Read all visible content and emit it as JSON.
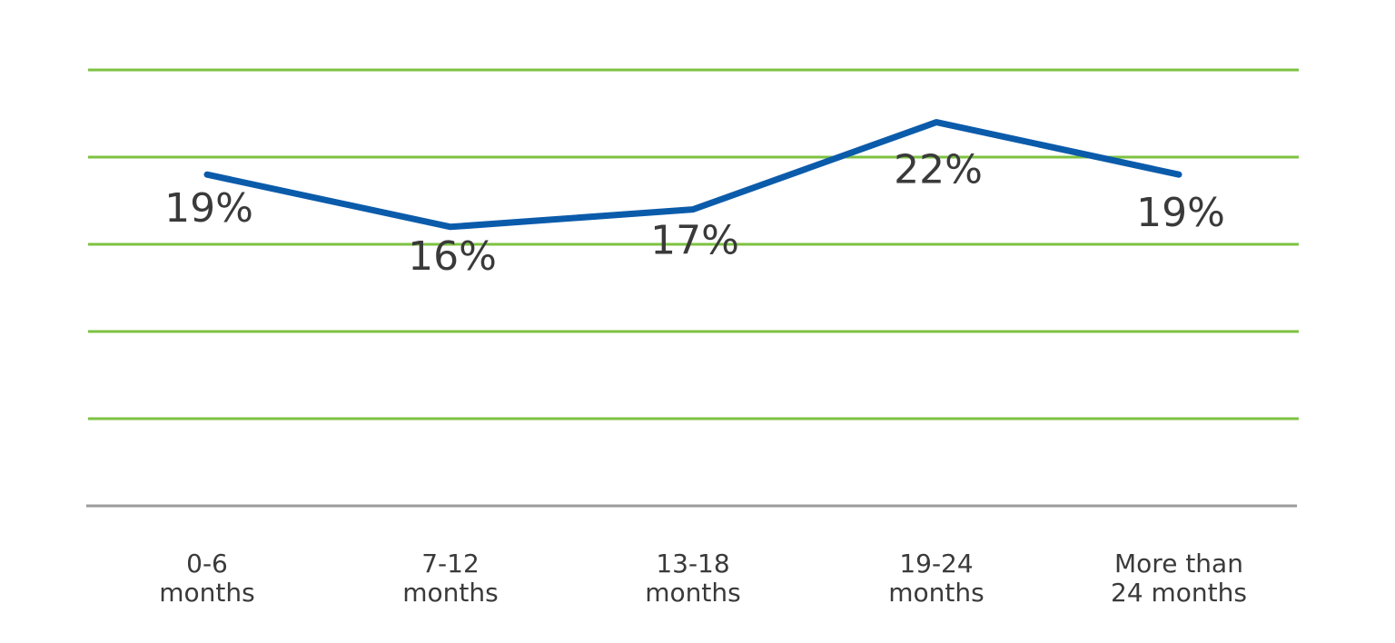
{
  "chart_data": {
    "type": "line",
    "categories": [
      "0-6 months",
      "7-12 months",
      "13-18 months",
      "19-24 months",
      "More than 24 months"
    ],
    "category_lines": [
      [
        "0-6",
        "months"
      ],
      [
        "7-12",
        "months"
      ],
      [
        "13-18",
        "months"
      ],
      [
        "19-24",
        "months"
      ],
      [
        "More than",
        "24 months"
      ]
    ],
    "values": [
      19,
      16,
      17,
      22,
      19
    ],
    "data_labels": [
      "19%",
      "16%",
      "17%",
      "22%",
      "19%"
    ],
    "ylim": [
      0,
      25
    ],
    "grid": true,
    "colors": {
      "series": "#0b5bab",
      "grid": "#7dc242",
      "axis": "#9b9b9b",
      "text": "#3a3a3a"
    }
  }
}
